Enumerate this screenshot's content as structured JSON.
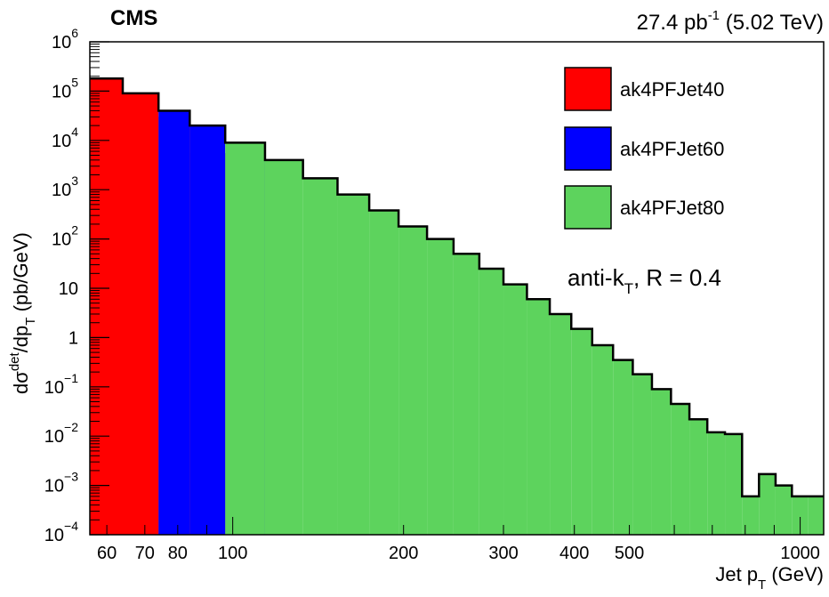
{
  "chart_data": {
    "type": "histogram",
    "experiment_label": "CMS",
    "lumi_label": {
      "value": "27.4 pb",
      "sup": "-1",
      "energy": "(5.02 TeV)"
    },
    "xlabel": {
      "main": "Jet p",
      "sub": "T",
      "unit": " (GeV)"
    },
    "ylabel": {
      "d": "dσ",
      "sup": "det",
      "mid": "/dp",
      "sub": "T",
      "unit": " (pb/GeV)"
    },
    "annotation": {
      "text": "anti-k",
      "sub": "T",
      "rest": ", R = 0.4"
    },
    "x_scale": "log",
    "y_scale": "log",
    "xlim": [
      56,
      1100
    ],
    "ylim": [
      0.0001,
      1000000
    ],
    "x_ticks": [
      {
        "value": 60,
        "label": "60"
      },
      {
        "value": 70,
        "label": "70"
      },
      {
        "value": 80,
        "label": "80"
      },
      {
        "value": 100,
        "label": "100"
      },
      {
        "value": 200,
        "label": "200"
      },
      {
        "value": 300,
        "label": "300"
      },
      {
        "value": 400,
        "label": "400"
      },
      {
        "value": 500,
        "label": "500"
      },
      {
        "value": 1000,
        "label": "1000"
      }
    ],
    "y_ticks": [
      {
        "exp": -4,
        "base": "10",
        "sup": "−4"
      },
      {
        "exp": -3,
        "base": "10",
        "sup": "−3"
      },
      {
        "exp": -2,
        "base": "10",
        "sup": "−2"
      },
      {
        "exp": -1,
        "base": "10",
        "sup": "−1"
      },
      {
        "exp": 0,
        "base": "1",
        "sup": ""
      },
      {
        "exp": 1,
        "base": "10",
        "sup": ""
      },
      {
        "exp": 2,
        "base": "10",
        "sup": "2"
      },
      {
        "exp": 3,
        "base": "10",
        "sup": "3"
      },
      {
        "exp": 4,
        "base": "10",
        "sup": "4"
      },
      {
        "exp": 5,
        "base": "10",
        "sup": "5"
      },
      {
        "exp": 6,
        "base": "10",
        "sup": "6"
      }
    ],
    "colors": {
      "ak4PFJet40": "#ff0000",
      "ak4PFJet60": "#0000ff",
      "ak4PFJet80": "#5dd35d",
      "outline": "#000000"
    },
    "legend": {
      "placement": "top-right",
      "entries": [
        "ak4PFJet40",
        "ak4PFJet60",
        "ak4PFJet80"
      ]
    },
    "bin_edges": [
      56,
      64,
      74,
      84,
      97,
      114,
      133,
      153,
      174,
      196,
      220,
      245,
      272,
      300,
      330,
      362,
      395,
      430,
      468,
      507,
      548,
      592,
      638,
      686,
      737,
      790,
      846,
      905,
      967,
      1032,
      1101
    ],
    "series": [
      {
        "name": "ak4PFJet40",
        "bins": [
          0,
          1,
          2,
          3
        ],
        "values": [
          180000,
          90000,
          30000,
          5500
        ]
      },
      {
        "name": "ak4PFJet60",
        "bins": [
          2,
          3,
          4
        ],
        "values": [
          40000,
          20000,
          5500
        ]
      },
      {
        "name": "ak4PFJet80",
        "bins": [
          4,
          5,
          6,
          7,
          8,
          9,
          10,
          11,
          12,
          13,
          14,
          15,
          16,
          17,
          18,
          19,
          20,
          21,
          22,
          23,
          24,
          25,
          26,
          27,
          28,
          29
        ],
        "values": [
          9000,
          4000,
          1700,
          800,
          380,
          180,
          100,
          50,
          25,
          12,
          6,
          3,
          1.5,
          0.7,
          0.35,
          0.18,
          0.09,
          0.045,
          0.022,
          0.012,
          0.011,
          0.0006,
          0.0017,
          0.001,
          0.0006,
          0.0006
        ]
      }
    ],
    "total": [
      180000,
      90000,
      40000,
      20000,
      9000,
      4000,
      1700,
      800,
      380,
      180,
      100,
      50,
      25,
      12,
      6,
      3,
      1.5,
      0.7,
      0.35,
      0.18,
      0.09,
      0.045,
      0.022,
      0.012,
      0.011,
      0.0006,
      0.0017,
      0.001,
      0.0006,
      0.0006
    ]
  }
}
